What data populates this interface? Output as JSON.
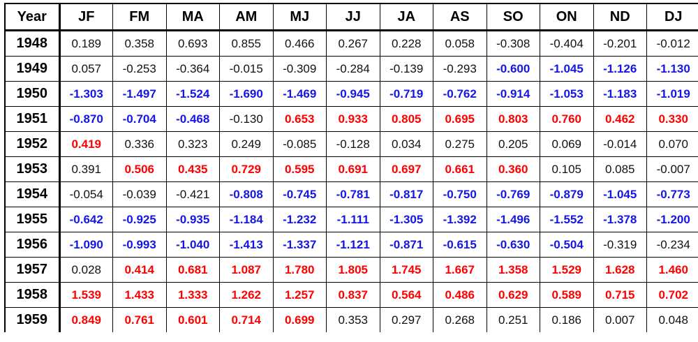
{
  "table": {
    "headers": [
      "Year",
      "JF",
      "FM",
      "MA",
      "AM",
      "MJ",
      "JJ",
      "JA",
      "AS",
      "SO",
      "ON",
      "ND",
      "DJ"
    ],
    "warm_color": "#ff0000",
    "cool_color": "#1515e6",
    "rows": [
      {
        "year": "1948",
        "values": [
          "0.189",
          "0.358",
          "0.693",
          "0.855",
          "0.466",
          "0.267",
          "0.228",
          "0.058",
          "-0.308",
          "-0.404",
          "-0.201",
          "-0.012"
        ],
        "highlight": [
          "n",
          "n",
          "n",
          "n",
          "n",
          "n",
          "n",
          "n",
          "n",
          "n",
          "n",
          "n"
        ]
      },
      {
        "year": "1949",
        "values": [
          "0.057",
          "-0.253",
          "-0.364",
          "-0.015",
          "-0.309",
          "-0.284",
          "-0.139",
          "-0.293",
          "-0.600",
          "-1.045",
          "-1.126",
          "-1.130"
        ],
        "highlight": [
          "n",
          "n",
          "n",
          "n",
          "n",
          "n",
          "n",
          "n",
          "c",
          "c",
          "c",
          "c"
        ]
      },
      {
        "year": "1950",
        "values": [
          "-1.303",
          "-1.497",
          "-1.524",
          "-1.690",
          "-1.469",
          "-0.945",
          "-0.719",
          "-0.762",
          "-0.914",
          "-1.053",
          "-1.183",
          "-1.019"
        ],
        "highlight": [
          "c",
          "c",
          "c",
          "c",
          "c",
          "c",
          "c",
          "c",
          "c",
          "c",
          "c",
          "c"
        ]
      },
      {
        "year": "1951",
        "values": [
          "-0.870",
          "-0.704",
          "-0.468",
          "-0.130",
          "0.653",
          "0.933",
          "0.805",
          "0.695",
          "0.803",
          "0.760",
          "0.462",
          "0.330"
        ],
        "highlight": [
          "c",
          "c",
          "c",
          "n",
          "w",
          "w",
          "w",
          "w",
          "w",
          "w",
          "w",
          "w"
        ]
      },
      {
        "year": "1952",
        "values": [
          "0.419",
          "0.336",
          "0.323",
          "0.249",
          "-0.085",
          "-0.128",
          "0.034",
          "0.275",
          "0.205",
          "0.069",
          "-0.014",
          "0.070"
        ],
        "highlight": [
          "w",
          "n",
          "n",
          "n",
          "n",
          "n",
          "n",
          "n",
          "n",
          "n",
          "n",
          "n"
        ]
      },
      {
        "year": "1953",
        "values": [
          "0.391",
          "0.506",
          "0.435",
          "0.729",
          "0.595",
          "0.691",
          "0.697",
          "0.661",
          "0.360",
          "0.105",
          "0.085",
          "-0.007"
        ],
        "highlight": [
          "n",
          "w",
          "w",
          "w",
          "w",
          "w",
          "w",
          "w",
          "w",
          "n",
          "n",
          "n"
        ]
      },
      {
        "year": "1954",
        "values": [
          "-0.054",
          "-0.039",
          "-0.421",
          "-0.808",
          "-0.745",
          "-0.781",
          "-0.817",
          "-0.750",
          "-0.769",
          "-0.879",
          "-1.045",
          "-0.773"
        ],
        "highlight": [
          "n",
          "n",
          "n",
          "c",
          "c",
          "c",
          "c",
          "c",
          "c",
          "c",
          "c",
          "c"
        ]
      },
      {
        "year": "1955",
        "values": [
          "-0.642",
          "-0.925",
          "-0.935",
          "-1.184",
          "-1.232",
          "-1.111",
          "-1.305",
          "-1.392",
          "-1.496",
          "-1.552",
          "-1.378",
          "-1.200"
        ],
        "highlight": [
          "c",
          "c",
          "c",
          "c",
          "c",
          "c",
          "c",
          "c",
          "c",
          "c",
          "c",
          "c"
        ]
      },
      {
        "year": "1956",
        "values": [
          "-1.090",
          "-0.993",
          "-1.040",
          "-1.413",
          "-1.337",
          "-1.121",
          "-0.871",
          "-0.615",
          "-0.630",
          "-0.504",
          "-0.319",
          "-0.234"
        ],
        "highlight": [
          "c",
          "c",
          "c",
          "c",
          "c",
          "c",
          "c",
          "c",
          "c",
          "c",
          "n",
          "n"
        ]
      },
      {
        "year": "1957",
        "values": [
          "0.028",
          "0.414",
          "0.681",
          "1.087",
          "1.780",
          "1.805",
          "1.745",
          "1.667",
          "1.358",
          "1.529",
          "1.628",
          "1.460"
        ],
        "highlight": [
          "n",
          "w",
          "w",
          "w",
          "w",
          "w",
          "w",
          "w",
          "w",
          "w",
          "w",
          "w"
        ]
      },
      {
        "year": "1958",
        "values": [
          "1.539",
          "1.433",
          "1.333",
          "1.262",
          "1.257",
          "0.837",
          "0.564",
          "0.486",
          "0.629",
          "0.589",
          "0.715",
          "0.702"
        ],
        "highlight": [
          "w",
          "w",
          "w",
          "w",
          "w",
          "w",
          "w",
          "w",
          "w",
          "w",
          "w",
          "w"
        ]
      },
      {
        "year": "1959",
        "values": [
          "0.849",
          "0.761",
          "0.601",
          "0.714",
          "0.699",
          "0.353",
          "0.297",
          "0.268",
          "0.251",
          "0.186",
          "0.007",
          "0.048"
        ],
        "highlight": [
          "w",
          "w",
          "w",
          "w",
          "w",
          "n",
          "n",
          "n",
          "n",
          "n",
          "n",
          "n"
        ]
      }
    ]
  }
}
